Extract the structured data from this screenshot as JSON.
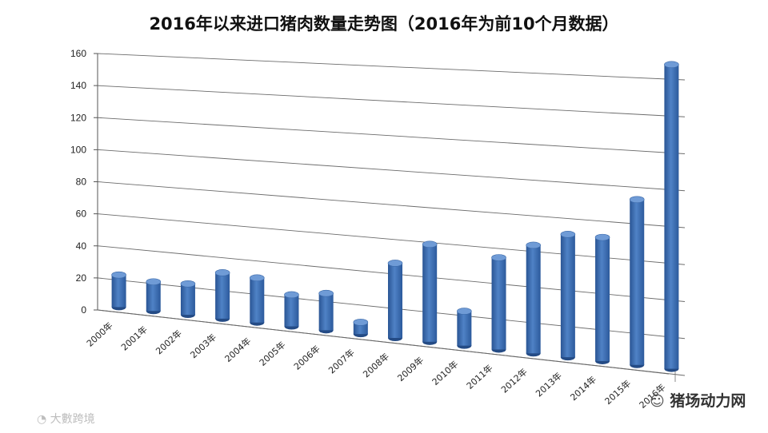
{
  "chart_data": {
    "type": "bar",
    "title": "2016年以来进口猪肉数量走势图（2016年为前10个月数据）",
    "categories": [
      "2000年",
      "2001年",
      "2002年",
      "2003年",
      "2004年",
      "2005年",
      "2006年",
      "2007年",
      "2008年",
      "2009年",
      "2010年",
      "2011年",
      "2012年",
      "2013年",
      "2014年",
      "2015年",
      "2016年"
    ],
    "values": [
      20,
      18,
      19,
      28,
      27,
      19,
      22,
      7,
      44,
      57,
      20,
      53,
      62,
      70,
      70,
      93,
      170
    ],
    "y_ticks": [
      "0",
      "20",
      "40",
      "60",
      "80",
      "100",
      "120",
      "140",
      "160"
    ],
    "ylim": [
      0,
      160
    ],
    "grid": true,
    "bar_color": "#3f6fb5"
  },
  "watermarks": {
    "right": "猪场动力网",
    "left": "大數跨境"
  }
}
